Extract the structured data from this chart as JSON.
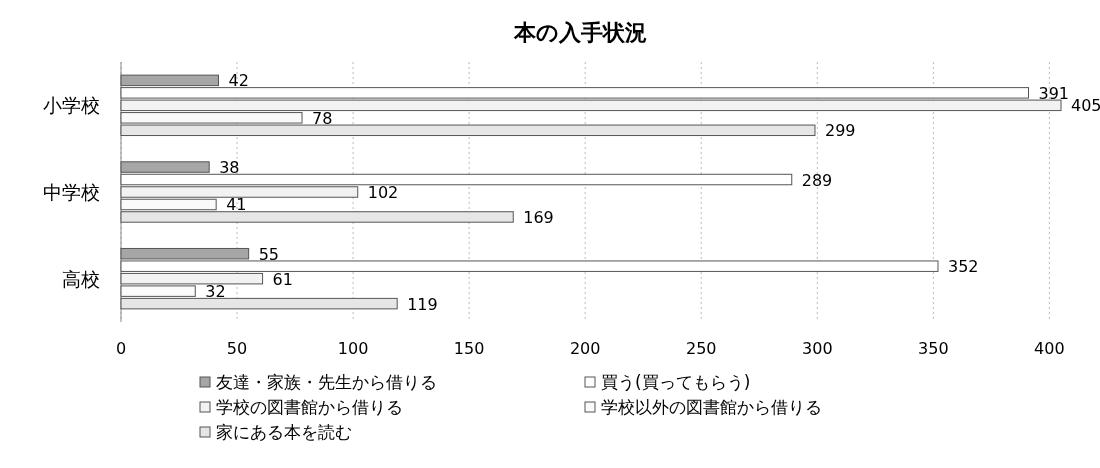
{
  "chart_data": {
    "type": "bar",
    "orientation": "horizontal",
    "title": "本の入手状況",
    "categories": [
      "小学校",
      "中学校",
      "高校"
    ],
    "series": [
      {
        "name": "友達・家族・先生から借りる",
        "color": "#a6a6a6",
        "values": [
          42,
          38,
          55
        ]
      },
      {
        "name": "買う(買ってもらう)",
        "color": "#ffffff",
        "values": [
          391,
          289,
          352
        ]
      },
      {
        "name": "学校の図書館から借りる",
        "color": "#f2f2f2",
        "values": [
          405,
          102,
          61
        ]
      },
      {
        "name": "学校以外の図書館から借りる",
        "color": "#fafafa",
        "values": [
          78,
          41,
          32
        ]
      },
      {
        "name": "家にある本を読む",
        "color": "#e6e6e6",
        "values": [
          299,
          169,
          119
        ]
      }
    ],
    "xlim": [
      0,
      405
    ],
    "xticks": [
      0,
      50,
      100,
      150,
      200,
      250,
      300,
      350,
      400
    ],
    "grid": "x",
    "legend": "bottom",
    "data_labels": true
  }
}
